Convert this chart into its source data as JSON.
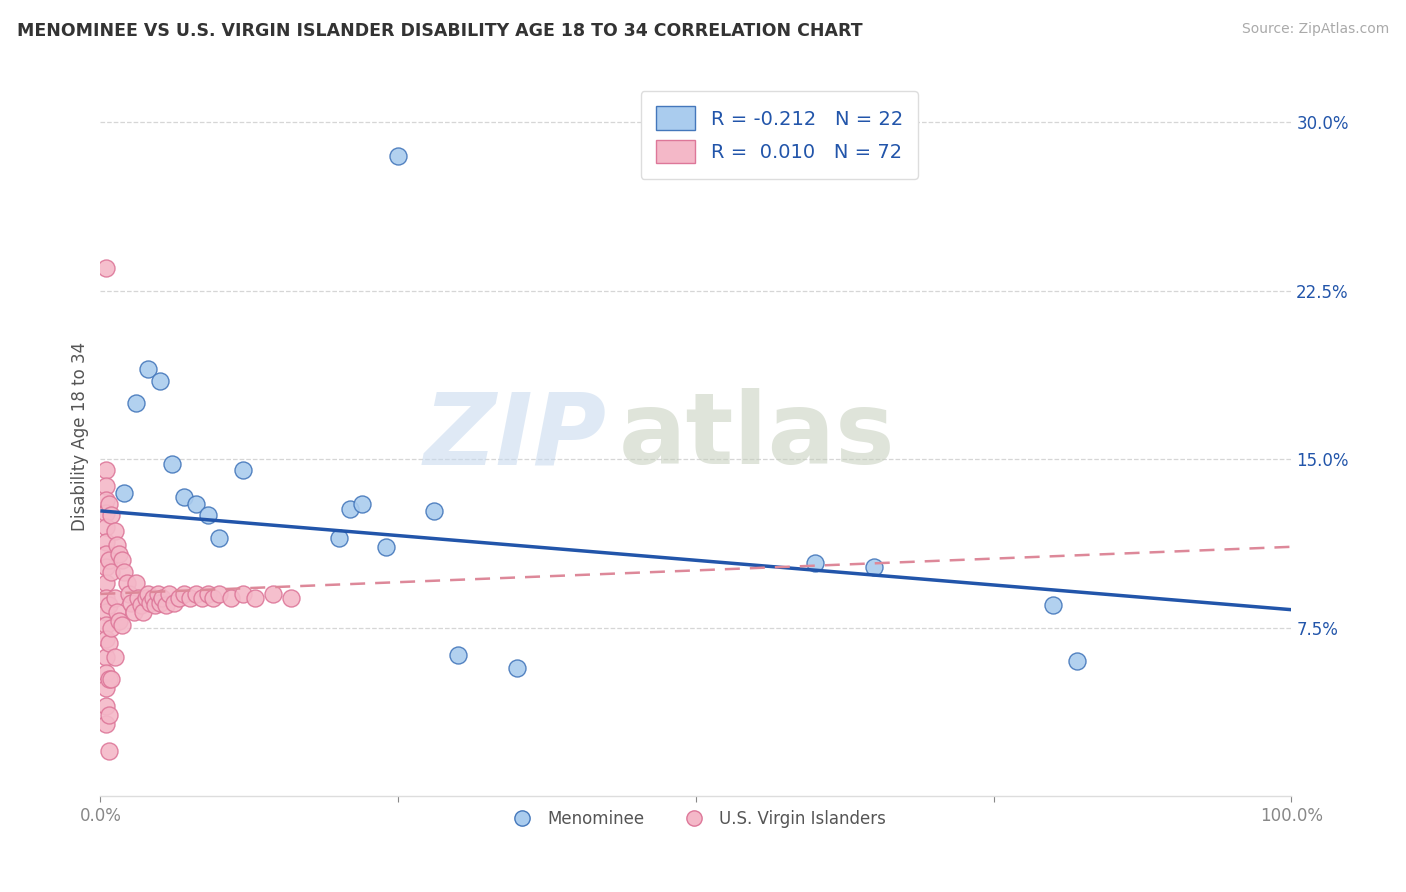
{
  "title": "MENOMINEE VS U.S. VIRGIN ISLANDER DISABILITY AGE 18 TO 34 CORRELATION CHART",
  "source": "Source: ZipAtlas.com",
  "ylabel": "Disability Age 18 to 34",
  "xlim": [
    0.0,
    1.0
  ],
  "ylim": [
    0.0,
    0.32
  ],
  "yticks_right": [
    0.075,
    0.15,
    0.225,
    0.3
  ],
  "ytick_right_labels": [
    "7.5%",
    "15.0%",
    "22.5%",
    "30.0%"
  ],
  "menominee_color": "#aaccee",
  "virgin_color": "#f4b8c8",
  "menominee_edge_color": "#4477bb",
  "virgin_edge_color": "#dd7799",
  "menominee_line_color": "#2255aa",
  "virgin_line_color": "#dd8899",
  "background_color": "#ffffff",
  "grid_color": "#cccccc",
  "legend1_r": "-0.212",
  "legend1_n": "22",
  "legend2_r": "0.010",
  "legend2_n": "72",
  "menominee_x": [
    0.02,
    0.03,
    0.04,
    0.05,
    0.06,
    0.07,
    0.08,
    0.09,
    0.1,
    0.12,
    0.2,
    0.21,
    0.22,
    0.24,
    0.25,
    0.28,
    0.3,
    0.35,
    0.6,
    0.65,
    0.8,
    0.82
  ],
  "menominee_y": [
    0.135,
    0.175,
    0.19,
    0.185,
    0.148,
    0.133,
    0.13,
    0.125,
    0.115,
    0.145,
    0.115,
    0.128,
    0.13,
    0.111,
    0.285,
    0.127,
    0.063,
    0.057,
    0.104,
    0.102,
    0.085,
    0.06
  ],
  "virgin_x": [
    0.005,
    0.005,
    0.005,
    0.005,
    0.005,
    0.005,
    0.005,
    0.005,
    0.005,
    0.005,
    0.005,
    0.005,
    0.005,
    0.005,
    0.005,
    0.005,
    0.005,
    0.005,
    0.005,
    0.007,
    0.007,
    0.007,
    0.007,
    0.007,
    0.007,
    0.007,
    0.009,
    0.009,
    0.009,
    0.009,
    0.012,
    0.012,
    0.012,
    0.014,
    0.014,
    0.016,
    0.016,
    0.018,
    0.018,
    0.02,
    0.022,
    0.024,
    0.026,
    0.028,
    0.03,
    0.032,
    0.034,
    0.036,
    0.038,
    0.04,
    0.042,
    0.044,
    0.046,
    0.048,
    0.05,
    0.052,
    0.055,
    0.058,
    0.062,
    0.066,
    0.07,
    0.075,
    0.08,
    0.085,
    0.09,
    0.095,
    0.1,
    0.11,
    0.12,
    0.13,
    0.145,
    0.16
  ],
  "virgin_y": [
    0.235,
    0.145,
    0.138,
    0.132,
    0.126,
    0.12,
    0.113,
    0.108,
    0.102,
    0.095,
    0.088,
    0.082,
    0.076,
    0.07,
    0.062,
    0.055,
    0.048,
    0.04,
    0.032,
    0.13,
    0.105,
    0.085,
    0.068,
    0.052,
    0.036,
    0.02,
    0.125,
    0.1,
    0.075,
    0.052,
    0.118,
    0.088,
    0.062,
    0.112,
    0.082,
    0.108,
    0.078,
    0.105,
    0.076,
    0.1,
    0.095,
    0.09,
    0.086,
    0.082,
    0.095,
    0.088,
    0.085,
    0.082,
    0.088,
    0.09,
    0.086,
    0.088,
    0.085,
    0.09,
    0.086,
    0.088,
    0.085,
    0.09,
    0.086,
    0.088,
    0.09,
    0.088,
    0.09,
    0.088,
    0.09,
    0.088,
    0.09,
    0.088,
    0.09,
    0.088,
    0.09,
    0.088
  ],
  "trend_men_x0": 0.0,
  "trend_men_x1": 1.0,
  "trend_men_y0": 0.127,
  "trend_men_y1": 0.083,
  "trend_vir_x0": 0.0,
  "trend_vir_x1": 1.0,
  "trend_vir_y0": 0.09,
  "trend_vir_y1": 0.111
}
